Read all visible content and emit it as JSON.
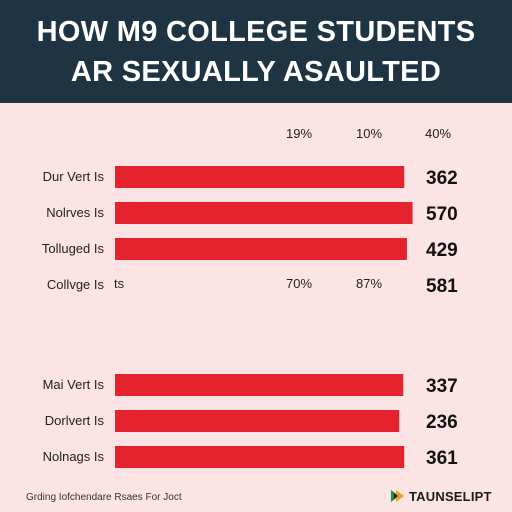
{
  "header": {
    "title_line1": "HOW M9 COLLEGE STUDENTS",
    "title_line2": "AR SEXUALLY ASAULTED"
  },
  "percent_labels_top": [
    "19%",
    "10%",
    "40%"
  ],
  "percent_labels_mid": [
    "70%",
    "87%"
  ],
  "extra_label": "ts",
  "chart_data": [
    {
      "type": "bar",
      "orientation": "horizontal",
      "categories": [
        "Dur Vert Is",
        "Nolrves Is",
        "Tolluged Is",
        "Collvge Is"
      ],
      "values": [
        362,
        570,
        429,
        581
      ],
      "bar_color": "#e5232f",
      "title": "",
      "xlabel": "",
      "ylabel": ""
    },
    {
      "type": "bar",
      "orientation": "horizontal",
      "categories": [
        "Mai Vert Is",
        "Dorlvert Is",
        "Nolnags Is"
      ],
      "values": [
        337,
        236,
        361
      ],
      "bar_color": "#e5232f",
      "title": "",
      "xlabel": "",
      "ylabel": ""
    }
  ],
  "footer": {
    "note": "Grding Iofchendare Rsaes For Joct",
    "brand": "TAUNSELIPT",
    "brand_icon": "brand-logo-icon"
  },
  "colors": {
    "background": "#fde4e4",
    "header": "#1f3442",
    "bar": "#e5232f"
  }
}
